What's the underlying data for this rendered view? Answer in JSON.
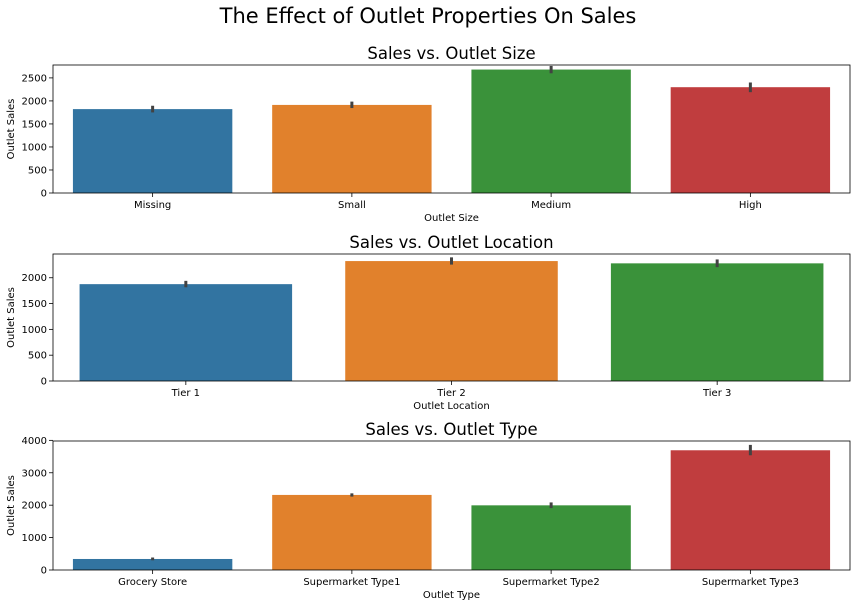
{
  "figure": {
    "title": "The Effect of Outlet Properties On Sales"
  },
  "chart_data": [
    {
      "type": "bar",
      "title": "Sales vs. Outlet Size",
      "xlabel": "Outlet Size",
      "ylabel": "Outlet Sales",
      "categories": [
        "Missing",
        "Small",
        "Medium",
        "High"
      ],
      "values": [
        1822,
        1913,
        2681,
        2298
      ],
      "error_low": [
        1750,
        1845,
        2600,
        2190
      ],
      "error_high": [
        1895,
        1985,
        2760,
        2400
      ],
      "colors": [
        "#3274a1",
        "#e1812c",
        "#3a923a",
        "#c03d3e"
      ],
      "ylim": [
        0,
        2780
      ],
      "yticks": [
        0,
        500,
        1000,
        1500,
        2000,
        2500
      ],
      "grid": false,
      "legend": "none"
    },
    {
      "type": "bar",
      "title": "Sales vs. Outlet Location",
      "xlabel": "Outlet Location",
      "ylabel": "Outlet Sales",
      "categories": [
        "Tier 1",
        "Tier 2",
        "Tier 3"
      ],
      "values": [
        1876,
        2323,
        2279
      ],
      "error_low": [
        1815,
        2255,
        2205
      ],
      "error_high": [
        1940,
        2395,
        2355
      ],
      "colors": [
        "#3274a1",
        "#e1812c",
        "#3a923a"
      ],
      "ylim": [
        0,
        2460
      ],
      "yticks": [
        0,
        500,
        1000,
        1500,
        2000
      ],
      "grid": false,
      "legend": "none"
    },
    {
      "type": "bar",
      "title": "Sales vs. Outlet Type",
      "xlabel": "Outlet Type",
      "ylabel": "Outlet Sales",
      "categories": [
        "Grocery Store",
        "Supermarket Type1",
        "Supermarket Type2",
        "Supermarket Type3"
      ],
      "values": [
        340,
        2316,
        1995,
        3694
      ],
      "error_low": [
        300,
        2265,
        1910,
        3540
      ],
      "error_high": [
        385,
        2365,
        2085,
        3860
      ],
      "colors": [
        "#3274a1",
        "#e1812c",
        "#3a923a",
        "#c03d3e"
      ],
      "ylim": [
        0,
        3980
      ],
      "yticks": [
        0,
        1000,
        2000,
        3000,
        4000
      ],
      "grid": false,
      "legend": "none"
    }
  ]
}
